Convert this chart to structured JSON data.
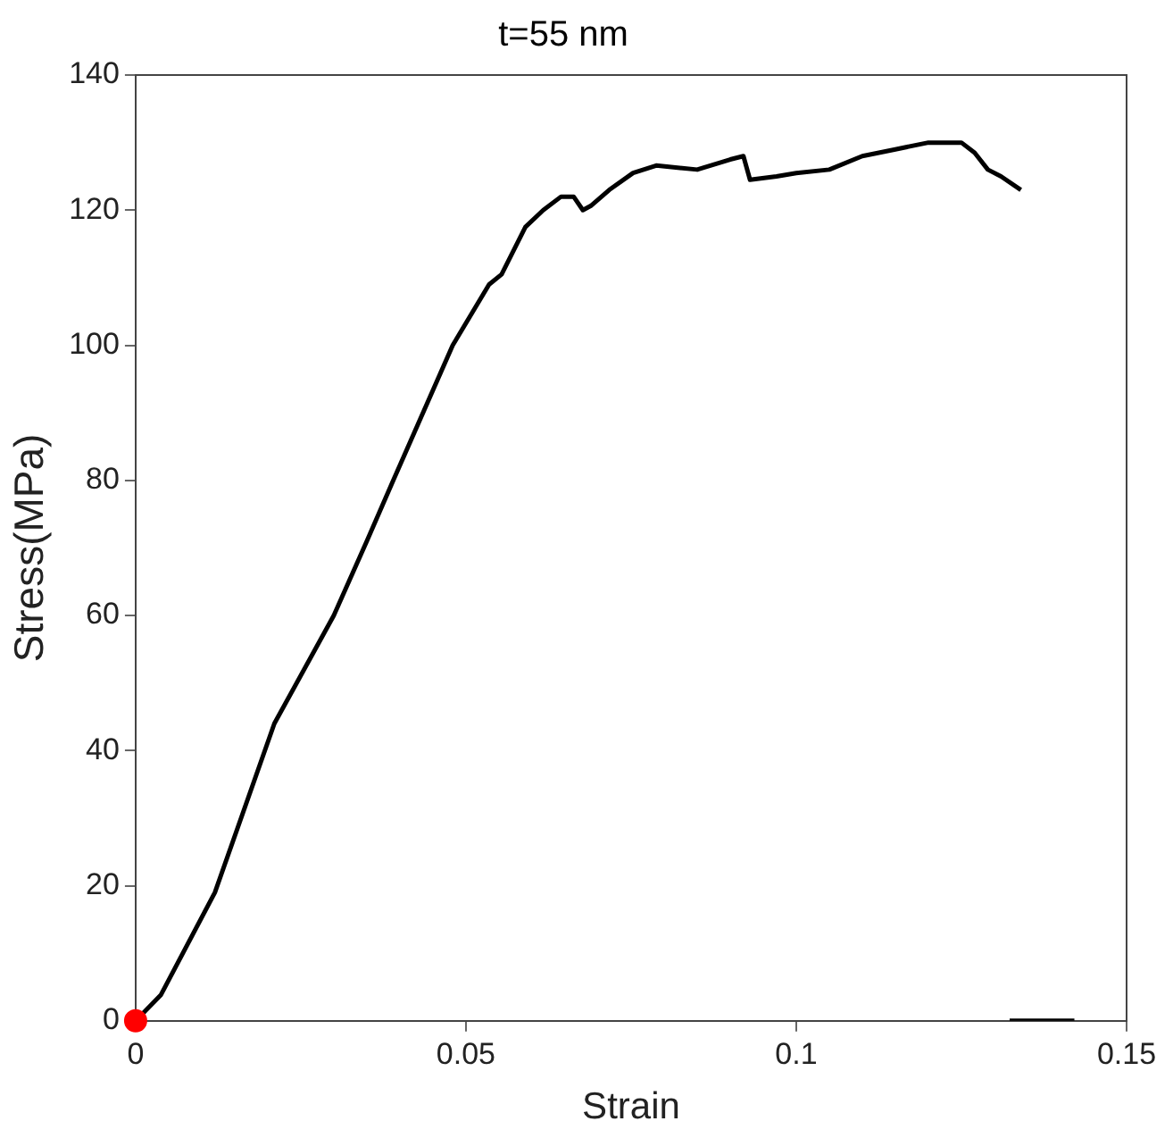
{
  "chart_data": {
    "type": "line",
    "title": "t=55 nm",
    "xlabel": "Strain",
    "ylabel": "Stress(MPa)",
    "xlim": [
      0,
      0.15
    ],
    "xticks": [
      0,
      0.05,
      0.1,
      0.15
    ],
    "ylim": [
      0,
      140
    ],
    "yticks": [
      0,
      20,
      40,
      60,
      80,
      100,
      120,
      140
    ],
    "grid": false,
    "legend": false,
    "marker": "none",
    "line_style": "solid",
    "series": [
      {
        "color": "#000000",
        "x": [
          0,
          0.0038,
          0.012,
          0.021,
          0.03,
          0.035,
          0.039,
          0.048,
          0.0535,
          0.0554,
          0.059,
          0.0617,
          0.0644,
          0.0663,
          0.0677,
          0.069,
          0.0717,
          0.0753,
          0.0788,
          0.085,
          0.09,
          0.092,
          0.093,
          0.097,
          0.1,
          0.105,
          0.11,
          0.115,
          0.12,
          0.125,
          0.127,
          0.129,
          0.131,
          0.134
        ],
        "values": [
          0,
          3.8,
          19,
          44,
          60,
          71,
          80,
          100,
          109,
          110.5,
          117.5,
          120,
          122,
          122,
          120,
          120.7,
          123,
          125.5,
          126.6,
          126,
          127.5,
          128,
          124.5,
          125,
          125.5,
          126,
          128,
          129,
          130,
          130,
          128.5,
          126,
          125,
          123
        ]
      },
      {
        "color": "#000000",
        "x": [
          0.1323,
          0.1421
        ],
        "values": [
          0,
          0
        ]
      },
      {
        "type": "scatter",
        "marker": "circle",
        "color": "#ff0000",
        "x": [
          0
        ],
        "values": [
          0
        ]
      }
    ]
  }
}
